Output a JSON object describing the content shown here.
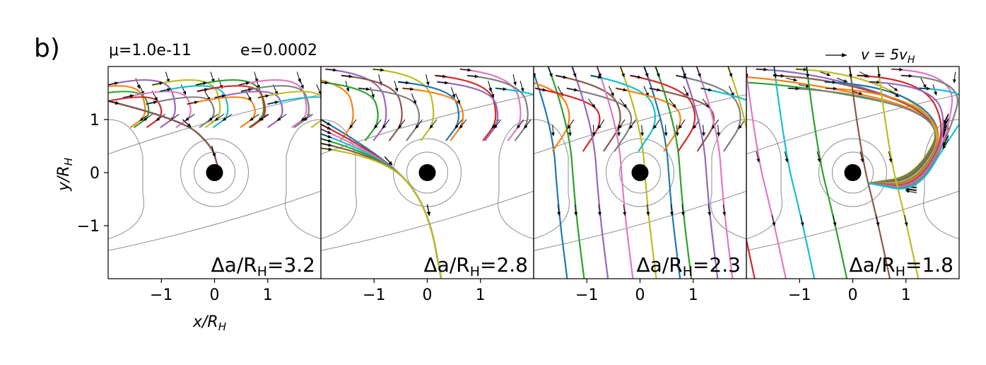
{
  "figure": {
    "panel_letter": "b)",
    "mu_text": "μ=1.0e-11",
    "e_text": "e=0.0002",
    "velocity_key": "v = 5v",
    "velocity_key_sub": "H"
  },
  "colors": [
    "#1f77b4",
    "#ff7f0e",
    "#2ca02c",
    "#d62728",
    "#9467bd",
    "#8c564b",
    "#e377c2",
    "#7f7f7f",
    "#bcbd22",
    "#17becf"
  ],
  "chart_data": [
    {
      "type": "line",
      "description_kind": "trajectory-field",
      "label": "Δa/R",
      "label_sub": "H",
      "label_value": "=3.2",
      "delta_a": 3.2,
      "xlim": [
        -2,
        2
      ],
      "ylim": [
        -2,
        2
      ],
      "xticks": [
        -1,
        0,
        1
      ],
      "yticks": [
        1,
        0,
        -1
      ],
      "xlabel": "x/R",
      "xlabel_sub": "H",
      "ylabel": "y/R",
      "ylabel_sub": "H",
      "central_body": [
        0,
        0
      ],
      "n_trajectories": 20
    },
    {
      "type": "line",
      "description_kind": "trajectory-field",
      "label": "Δa/R",
      "label_sub": "H",
      "label_value": "=2.8",
      "delta_a": 2.8,
      "xlim": [
        -2,
        2
      ],
      "ylim": [
        -2,
        2
      ],
      "xticks": [
        -1,
        0,
        1
      ],
      "central_body": [
        0,
        0
      ],
      "n_trajectories": 20
    },
    {
      "type": "line",
      "description_kind": "trajectory-field",
      "label": "Δa/R",
      "label_sub": "H",
      "label_value": "=2.3",
      "delta_a": 2.3,
      "xlim": [
        -2,
        2
      ],
      "ylim": [
        -2,
        2
      ],
      "xticks": [
        -1,
        0,
        1
      ],
      "central_body": [
        0,
        0
      ],
      "n_trajectories": 20
    },
    {
      "type": "line",
      "description_kind": "trajectory-field",
      "label": "Δa/R",
      "label_sub": "H",
      "label_value": "=1.8",
      "delta_a": 1.8,
      "xlim": [
        -2,
        2
      ],
      "ylim": [
        -2,
        2
      ],
      "xticks": [
        -1,
        0,
        1
      ],
      "central_body": [
        0,
        0
      ],
      "n_trajectories": 20
    }
  ]
}
